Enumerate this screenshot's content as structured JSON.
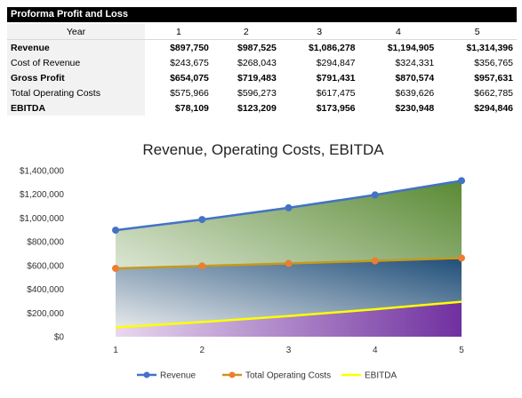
{
  "table": {
    "title": "Proforma Profit and Loss",
    "header_label": "Year",
    "years": [
      "1",
      "2",
      "3",
      "4",
      "5"
    ],
    "rows": [
      {
        "label": "Revenue",
        "bold": true,
        "values": [
          "$897,750",
          "$987,525",
          "$1,086,278",
          "$1,194,905",
          "$1,314,396"
        ]
      },
      {
        "label": "Cost of Revenue",
        "bold": false,
        "values": [
          "$243,675",
          "$268,043",
          "$294,847",
          "$324,331",
          "$356,765"
        ]
      },
      {
        "label": "Gross Profit",
        "bold": true,
        "values": [
          "$654,075",
          "$719,483",
          "$791,431",
          "$870,574",
          "$957,631"
        ]
      },
      {
        "label": "Total Operating Costs",
        "bold": false,
        "values": [
          "$575,966",
          "$596,273",
          "$617,475",
          "$639,626",
          "$662,785"
        ]
      },
      {
        "label": "EBITDA",
        "bold": true,
        "values": [
          "$78,109",
          "$123,209",
          "$173,956",
          "$230,948",
          "$294,846"
        ]
      }
    ]
  },
  "chart_data": {
    "type": "line",
    "title": "Revenue, Operating Costs, EBITDA",
    "categories": [
      1,
      2,
      3,
      4,
      5
    ],
    "ylim": [
      0,
      1400000
    ],
    "yticks": [
      0,
      200000,
      400000,
      600000,
      800000,
      1000000,
      1200000,
      1400000
    ],
    "ytick_labels": [
      "$0",
      "$200,000",
      "$400,000",
      "$600,000",
      "$800,000",
      "$1,000,000",
      "$1,200,000",
      "$1,400,000"
    ],
    "grid": false,
    "legend_position": "bottom",
    "series": [
      {
        "name": "Revenue",
        "values": [
          897750,
          987525,
          1086278,
          1194905,
          1314396
        ],
        "color": "#4472c4",
        "marker": "circle"
      },
      {
        "name": "Total Operating Costs",
        "values": [
          575966,
          596273,
          617475,
          639626,
          662785
        ],
        "color": "#c49a1c",
        "marker": "circle",
        "marker_color": "#ed7d31"
      },
      {
        "name": "EBITDA",
        "values": [
          78109,
          123209,
          173956,
          230948,
          294846
        ],
        "color": "#ffff00",
        "marker": "none"
      }
    ],
    "fill_colors": {
      "revenue_area": [
        "#ffffff",
        "#5a8a34"
      ],
      "costs_area": [
        "#f2f2f2",
        "#1f4e79"
      ],
      "ebitda_area": [
        "#e8d8ee",
        "#7030a0"
      ]
    }
  }
}
